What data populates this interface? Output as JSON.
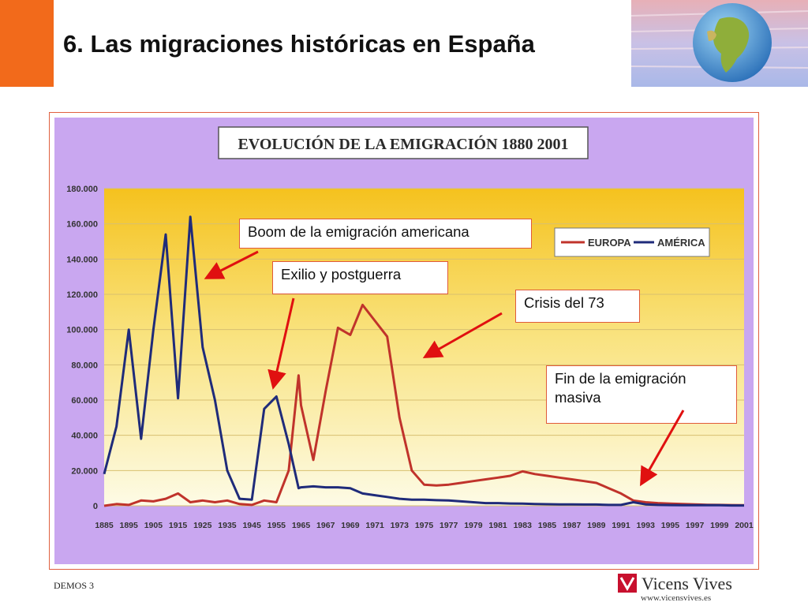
{
  "slide": {
    "title": "6. Las migraciones históricas en España",
    "footer_left": "DEMOS 3",
    "brand_name": "Vicens Vives",
    "brand_url": "www.vicensvives.es"
  },
  "callouts": {
    "boom": "Boom de la emigración americana",
    "exilio": "Exilio y postguerra",
    "crisis": "Crisis del 73",
    "fin": "Fin de la emigración masiva"
  },
  "colors": {
    "europa": "#c0332b",
    "america": "#1f2b7a",
    "frame_bg": "#c9a7f0",
    "plot_top": "#f5c21e",
    "plot_bottom": "#fdfbe6",
    "arrow": "#e01010",
    "brand": "#c8102e",
    "accent_orange": "#f26a1b"
  },
  "chart_data": {
    "type": "line",
    "title": "EVOLUCIÓN DE LA EMIGRACIÓN 1880 2001",
    "xlabel": "",
    "ylabel": "",
    "ylim": [
      0,
      180000
    ],
    "yticks": [
      0,
      20000,
      40000,
      60000,
      80000,
      100000,
      120000,
      140000,
      160000,
      180000
    ],
    "ytick_labels": [
      "0",
      "20.000",
      "40.000",
      "60.000",
      "80.000",
      "100.000",
      "120.000",
      "140.000",
      "160.000",
      "180.000"
    ],
    "x_labels": [
      "1885",
      "1895",
      "1905",
      "1915",
      "1925",
      "1935",
      "1945",
      "1955",
      "1965",
      "1967",
      "1969",
      "1971",
      "1973",
      "1975",
      "1977",
      "1979",
      "1981",
      "1983",
      "1985",
      "1987",
      "1989",
      "1991",
      "1993",
      "1995",
      "1997",
      "1999",
      "2001"
    ],
    "grid": true,
    "legend_position": "top-right",
    "series": [
      {
        "name": "EUROPA",
        "points": [
          [
            1885,
            0
          ],
          [
            1890,
            1000
          ],
          [
            1895,
            500
          ],
          [
            1900,
            3000
          ],
          [
            1905,
            2500
          ],
          [
            1910,
            4000
          ],
          [
            1915,
            7000
          ],
          [
            1920,
            2000
          ],
          [
            1925,
            3000
          ],
          [
            1930,
            2000
          ],
          [
            1935,
            3000
          ],
          [
            1940,
            1000
          ],
          [
            1945,
            500
          ],
          [
            1950,
            3000
          ],
          [
            1955,
            2000
          ],
          [
            1960,
            20000
          ],
          [
            1964,
            74000
          ],
          [
            1965,
            57000
          ],
          [
            1966,
            26000
          ],
          [
            1967,
            65000
          ],
          [
            1968,
            101000
          ],
          [
            1969,
            97000
          ],
          [
            1970,
            114000
          ],
          [
            1971,
            105000
          ],
          [
            1972,
            96000
          ],
          [
            1973,
            50000
          ],
          [
            1974,
            20000
          ],
          [
            1975,
            12000
          ],
          [
            1976,
            11500
          ],
          [
            1977,
            12000
          ],
          [
            1978,
            13000
          ],
          [
            1979,
            14000
          ],
          [
            1980,
            15000
          ],
          [
            1981,
            16000
          ],
          [
            1982,
            17000
          ],
          [
            1983,
            19500
          ],
          [
            1984,
            18000
          ],
          [
            1985,
            17000
          ],
          [
            1986,
            16000
          ],
          [
            1987,
            15000
          ],
          [
            1988,
            14000
          ],
          [
            1989,
            13000
          ],
          [
            1990,
            10000
          ],
          [
            1991,
            7000
          ],
          [
            1992,
            3000
          ],
          [
            1993,
            2000
          ],
          [
            1994,
            1500
          ],
          [
            1995,
            1200
          ],
          [
            1996,
            1000
          ],
          [
            1997,
            800
          ],
          [
            1998,
            600
          ],
          [
            1999,
            500
          ],
          [
            2000,
            400
          ],
          [
            2001,
            300
          ]
        ]
      },
      {
        "name": "AMÉRICA",
        "points": [
          [
            1885,
            18000
          ],
          [
            1890,
            45000
          ],
          [
            1895,
            100000
          ],
          [
            1900,
            38000
          ],
          [
            1905,
            100000
          ],
          [
            1910,
            154000
          ],
          [
            1915,
            61000
          ],
          [
            1920,
            164000
          ],
          [
            1925,
            90000
          ],
          [
            1930,
            60000
          ],
          [
            1935,
            20000
          ],
          [
            1940,
            4000
          ],
          [
            1945,
            3500
          ],
          [
            1950,
            55000
          ],
          [
            1955,
            62000
          ],
          [
            1960,
            35000
          ],
          [
            1964,
            10000
          ],
          [
            1965,
            10500
          ],
          [
            1966,
            11000
          ],
          [
            1967,
            10500
          ],
          [
            1968,
            10500
          ],
          [
            1969,
            10000
          ],
          [
            1970,
            7000
          ],
          [
            1971,
            6000
          ],
          [
            1972,
            5000
          ],
          [
            1973,
            4000
          ],
          [
            1974,
            3500
          ],
          [
            1975,
            3500
          ],
          [
            1976,
            3200
          ],
          [
            1977,
            3000
          ],
          [
            1978,
            2500
          ],
          [
            1979,
            2000
          ],
          [
            1980,
            1500
          ],
          [
            1981,
            1500
          ],
          [
            1982,
            1300
          ],
          [
            1983,
            1200
          ],
          [
            1984,
            1000
          ],
          [
            1985,
            900
          ],
          [
            1986,
            800
          ],
          [
            1987,
            800
          ],
          [
            1988,
            700
          ],
          [
            1989,
            700
          ],
          [
            1990,
            500
          ],
          [
            1991,
            500
          ],
          [
            1992,
            2000
          ],
          [
            1993,
            800
          ],
          [
            1994,
            500
          ],
          [
            1995,
            400
          ],
          [
            1996,
            300
          ],
          [
            1997,
            300
          ],
          [
            1998,
            300
          ],
          [
            1999,
            300
          ],
          [
            2000,
            200
          ],
          [
            2001,
            200
          ]
        ]
      }
    ]
  }
}
